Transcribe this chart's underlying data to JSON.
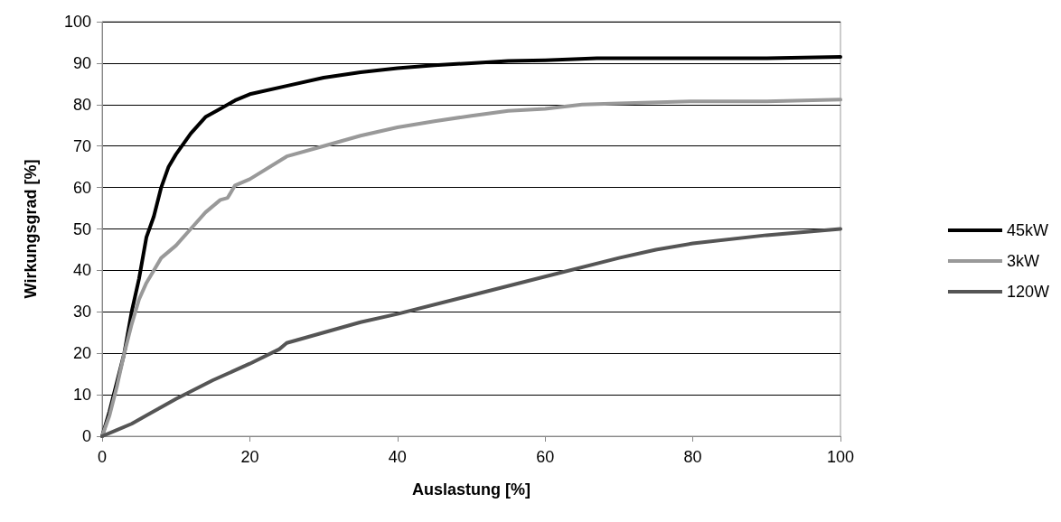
{
  "chart_data": {
    "type": "line",
    "xlabel": "Auslastung [%]",
    "ylabel": "Wirkungsgrad [%]",
    "xlim": [
      0,
      100
    ],
    "xticks": [
      0,
      20,
      40,
      60,
      80,
      100
    ],
    "ylim": [
      0,
      100
    ],
    "yticks": [
      0,
      10,
      20,
      30,
      40,
      50,
      60,
      70,
      80,
      90,
      100
    ],
    "grid": "y",
    "legend": "right",
    "marker": "none",
    "line_style": "solid",
    "series": [
      {
        "name": "45kW",
        "color": "#000000",
        "x": [
          0,
          1,
          2,
          3,
          4,
          5,
          6,
          7,
          8,
          9,
          10,
          12,
          14,
          16,
          18,
          20,
          25,
          30,
          35,
          40,
          45,
          50,
          55,
          60,
          67,
          80,
          90,
          100
        ],
        "values": [
          0,
          6,
          13,
          20,
          30,
          38,
          48,
          53,
          60,
          65,
          68,
          73,
          77,
          79,
          81,
          82.5,
          84.5,
          86.5,
          87.8,
          88.8,
          89.5,
          90,
          90.5,
          90.7,
          91.2,
          91.2,
          91.2,
          91.5
        ]
      },
      {
        "name": "3kW",
        "color": "#999999",
        "x": [
          0,
          1,
          2,
          3,
          4,
          5,
          6,
          7,
          8,
          10,
          12,
          14,
          16,
          17,
          18,
          20,
          25,
          30,
          35,
          40,
          45,
          50,
          55,
          60,
          65,
          70,
          80,
          90,
          100
        ],
        "values": [
          0,
          5,
          12,
          20,
          27,
          33,
          37,
          40,
          43,
          46,
          50,
          54,
          57,
          57.5,
          60.5,
          62,
          67.5,
          70,
          72.5,
          74.5,
          76,
          77.3,
          78.5,
          79,
          80,
          80.3,
          80.8,
          80.8,
          81.2
        ]
      },
      {
        "name": "120W",
        "color": "#555555",
        "x": [
          0,
          2,
          4,
          6,
          10,
          15,
          20,
          24,
          25,
          30,
          35,
          40,
          50,
          60,
          70,
          75,
          80,
          90,
          100
        ],
        "values": [
          0,
          1.5,
          3,
          5,
          9,
          13.5,
          17.5,
          21,
          22.5,
          25,
          27.5,
          29.5,
          34,
          38.5,
          43,
          45,
          46.5,
          48.5,
          50
        ]
      }
    ]
  }
}
